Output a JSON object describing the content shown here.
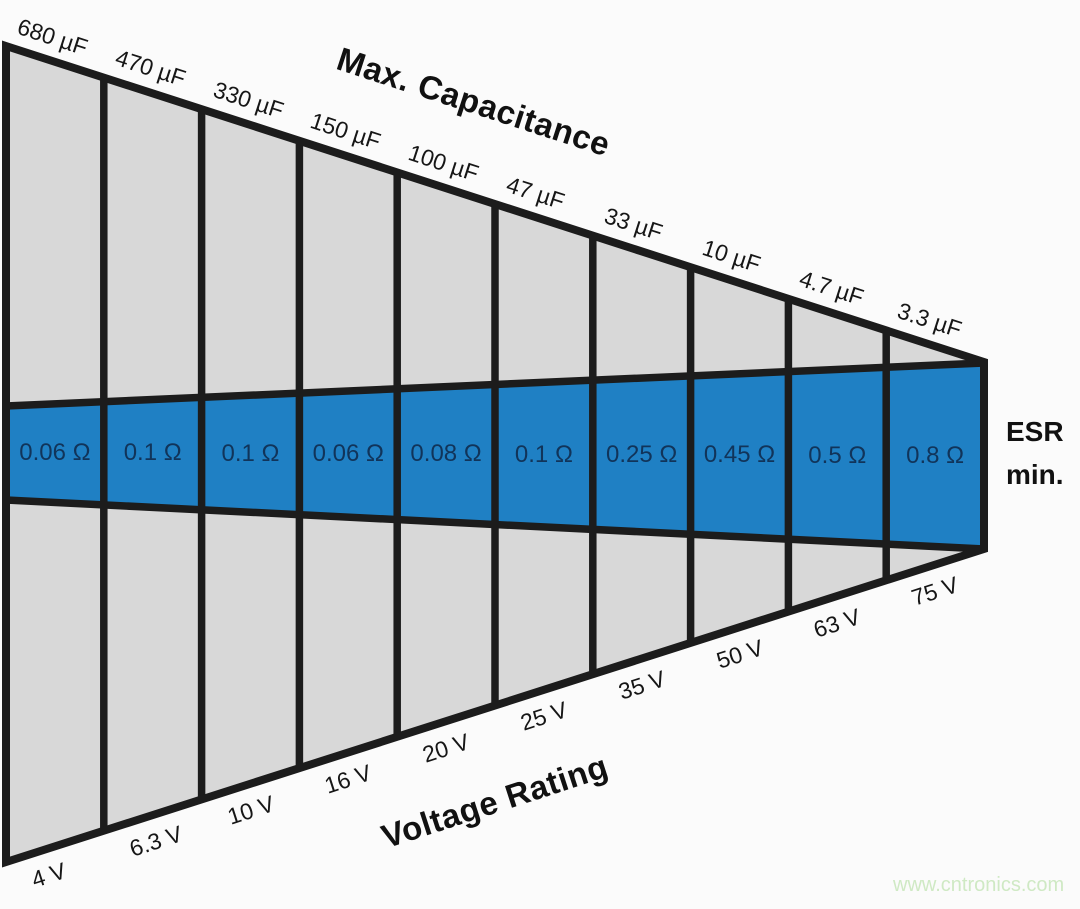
{
  "titles": {
    "capacitance": "Max. Capacitance",
    "voltage": "Voltage Rating",
    "esr_line1": "ESR",
    "esr_line2": "min."
  },
  "watermark": "www.cntronics.com",
  "colors": {
    "background": "#fbfbfb",
    "cell_fill": "#d8d8d8",
    "band_fill": "#1f80c4",
    "line": "#1c1c1c",
    "esr_text": "#11345a",
    "label_text": "#161616",
    "title_text": "#111111",
    "watermark_text": "#cfe9c4"
  },
  "chart_data": {
    "type": "table",
    "description": "Wedge diagram mapping capacitor voltage rating to maximum capacitance and minimum ESR",
    "columns": [
      {
        "capacitance": "680 µF",
        "voltage": "4 V",
        "esr": "0.06 Ω"
      },
      {
        "capacitance": "470 µF",
        "voltage": "6.3 V",
        "esr": "0.1 Ω"
      },
      {
        "capacitance": "330 µF",
        "voltage": "10 V",
        "esr": "0.1 Ω"
      },
      {
        "capacitance": "150 µF",
        "voltage": "16 V",
        "esr": "0.06 Ω"
      },
      {
        "capacitance": "100 µF",
        "voltage": "20 V",
        "esr": "0.08 Ω"
      },
      {
        "capacitance": "47 µF",
        "voltage": "25 V",
        "esr": "0.1 Ω"
      },
      {
        "capacitance": "33 µF",
        "voltage": "35 V",
        "esr": "0.25 Ω"
      },
      {
        "capacitance": "10 µF",
        "voltage": "50 V",
        "esr": "0.45 Ω"
      },
      {
        "capacitance": "4.7 µF",
        "voltage": "63 V",
        "esr": "0.5 Ω"
      },
      {
        "capacitance": "3.3 µF",
        "voltage": "75 V",
        "esr": "0.8 Ω"
      }
    ]
  }
}
